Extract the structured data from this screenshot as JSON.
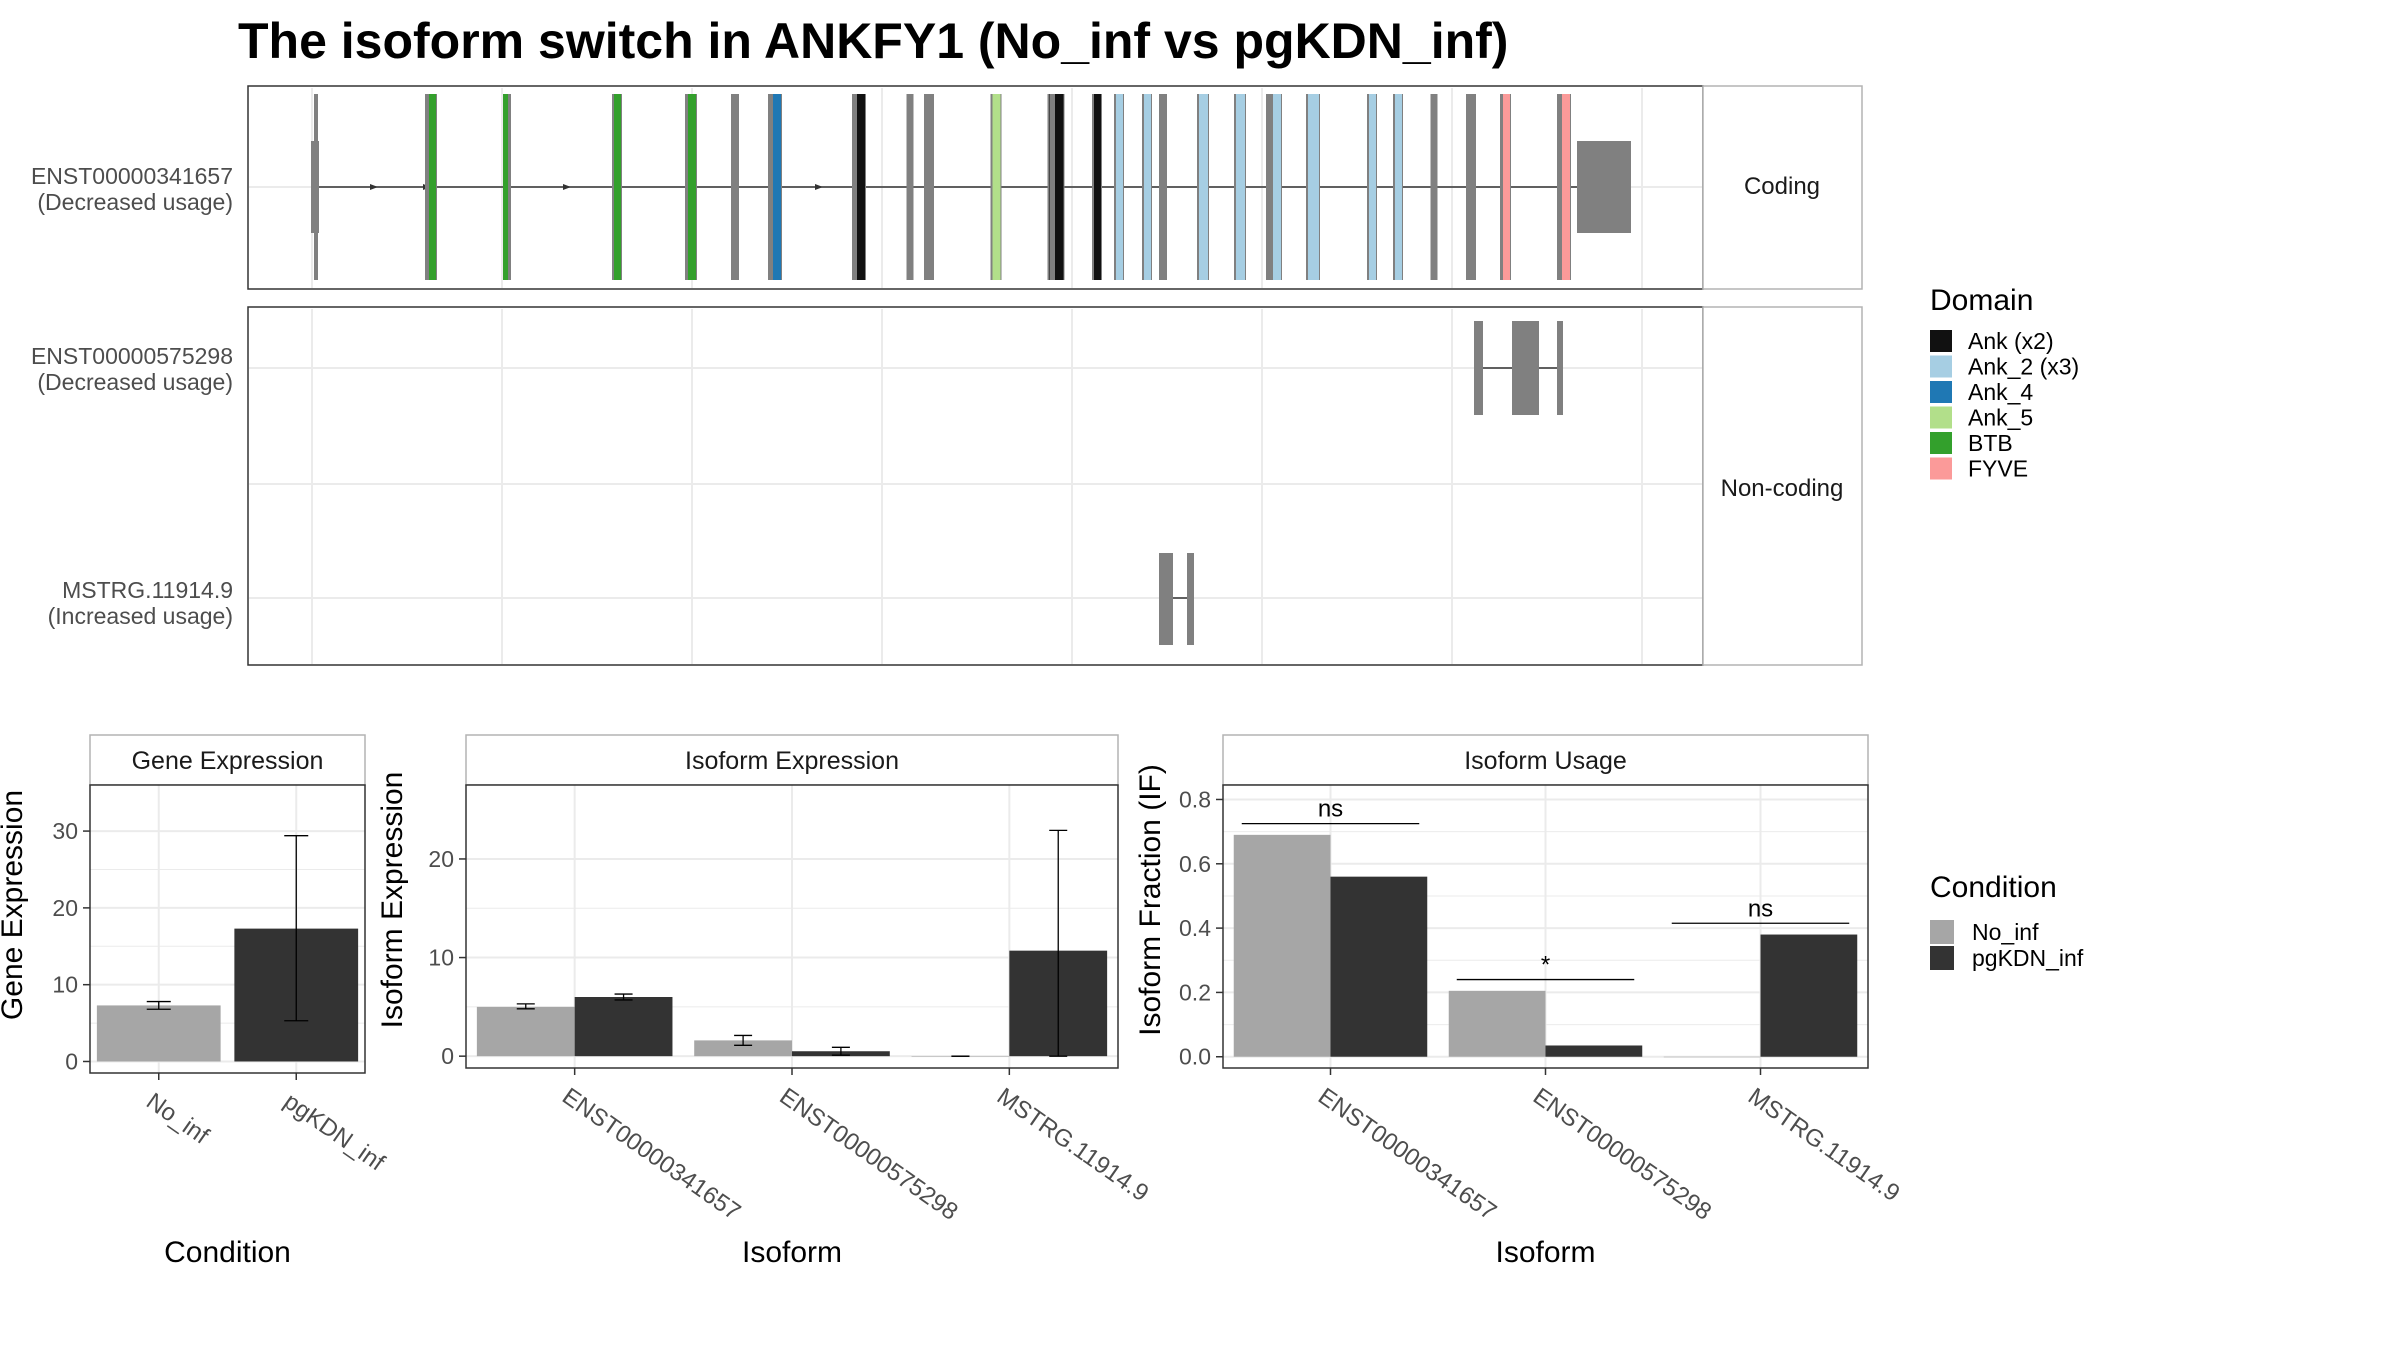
{
  "title": "The isoform switch in ANKFY1 (No_inf vs pgKDN_inf)",
  "colors": {
    "exon_gray": "#808080",
    "no_inf": "#a6a6a6",
    "pgkdn_inf": "#333333",
    "grid": "#ebebeb",
    "panel_border": "#333333",
    "strip_border": "#b3b3b3"
  },
  "structure": {
    "facets": [
      {
        "label": "Coding",
        "transcripts": [
          {
            "id": "ENST00000341657",
            "note": "(Decreased usage)"
          }
        ]
      },
      {
        "label": "Non-coding",
        "transcripts": [
          {
            "id": "ENST00000575298",
            "note": "(Decreased usage)"
          },
          {
            "id": "MSTRG.11914.9",
            "note": "(Increased usage)"
          }
        ]
      }
    ],
    "domain_legend": {
      "title": "Domain",
      "entries": [
        {
          "label": "Ank (x2)",
          "color": "#111111"
        },
        {
          "label": "Ank_2 (x3)",
          "color": "#a6cee3"
        },
        {
          "label": "Ank_4",
          "color": "#1f78b4"
        },
        {
          "label": "Ank_5",
          "color": "#b2df8a"
        },
        {
          "label": "BTB",
          "color": "#33a02c"
        },
        {
          "label": "FYVE",
          "color": "#fb9a99"
        }
      ]
    }
  },
  "chart_data": [
    {
      "type": "bar",
      "title": "Gene Expression",
      "xlabel": "Condition",
      "ylabel": "Gene Expression",
      "categories": [
        "No_inf",
        "pgKDN_inf"
      ],
      "values": [
        7.3,
        17.3
      ],
      "errors_low": [
        6.8,
        5.3
      ],
      "errors_high": [
        7.8,
        29.4
      ],
      "ylim": [
        -1.5,
        36
      ],
      "yticks": [
        0,
        10,
        20,
        30
      ]
    },
    {
      "type": "bar",
      "title": "Isoform Expression",
      "xlabel": "Isoform",
      "ylabel": "Isoform Expression",
      "categories": [
        "ENST00000341657",
        "ENST00000575298",
        "MSTRG.11914.9"
      ],
      "series": [
        {
          "name": "No_inf",
          "values": [
            5.0,
            1.6,
            0.0
          ],
          "errors_low": [
            4.8,
            1.1,
            0.0
          ],
          "errors_high": [
            5.3,
            2.1,
            0.0
          ]
        },
        {
          "name": "pgKDN_inf",
          "values": [
            6.0,
            0.5,
            10.7
          ],
          "errors_low": [
            5.7,
            0.1,
            0.0
          ],
          "errors_high": [
            6.3,
            0.9,
            22.9
          ]
        }
      ],
      "ylim": [
        -1.2,
        27.5
      ],
      "yticks": [
        0,
        10,
        20
      ]
    },
    {
      "type": "bar",
      "title": "Isoform Usage",
      "xlabel": "Isoform",
      "ylabel": "Isoform Fraction (IF)",
      "categories": [
        "ENST00000341657",
        "ENST00000575298",
        "MSTRG.11914.9"
      ],
      "series": [
        {
          "name": "No_inf",
          "values": [
            0.69,
            0.205,
            0.0
          ]
        },
        {
          "name": "pgKDN_inf",
          "values": [
            0.56,
            0.035,
            0.38
          ]
        }
      ],
      "significance": [
        "ns",
        "*",
        "ns"
      ],
      "ylim": [
        -0.035,
        0.845
      ],
      "yticks": [
        0.0,
        0.2,
        0.4,
        0.6,
        0.8
      ],
      "legend": {
        "title": "Condition",
        "entries": [
          "No_inf",
          "pgKDN_inf"
        ],
        "position": "right"
      }
    }
  ]
}
